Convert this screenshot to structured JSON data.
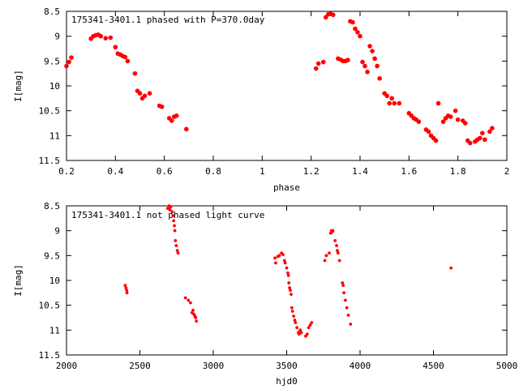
{
  "chart_data": [
    {
      "type": "scatter",
      "title": "175341-3401.1 phased with P=370.0day",
      "xlabel": "phase",
      "ylabel": "I[mag]",
      "xlim": [
        0.2,
        2.0
      ],
      "ylim": [
        11.5,
        8.5
      ],
      "y_inverted": true,
      "xticks": [
        "0.2",
        "0.4",
        "0.6",
        "0.8",
        "1",
        "1.2",
        "1.4",
        "1.6",
        "1.8",
        "2"
      ],
      "xtick_values": [
        0.2,
        0.4,
        0.6,
        0.8,
        1.0,
        1.2,
        1.4,
        1.6,
        1.8,
        2.0
      ],
      "yticks": [
        "8.5",
        "9",
        "9.5",
        "10",
        "10.5",
        "11",
        "11.5"
      ],
      "ytick_values": [
        8.5,
        9.0,
        9.5,
        10.0,
        10.5,
        11.0,
        11.5
      ],
      "grid": false,
      "color": "#ff0000",
      "x": [
        0.2,
        0.21,
        0.22,
        0.3,
        0.31,
        0.32,
        0.33,
        0.34,
        0.36,
        0.38,
        0.4,
        0.41,
        0.42,
        0.43,
        0.44,
        0.45,
        0.48,
        0.49,
        0.5,
        0.51,
        0.52,
        0.54,
        0.58,
        0.59,
        0.62,
        0.63,
        0.64,
        0.65,
        0.69,
        1.22,
        1.23,
        1.25,
        1.26,
        1.27,
        1.28,
        1.29,
        1.31,
        1.32,
        1.33,
        1.34,
        1.35,
        1.36,
        1.37,
        1.38,
        1.39,
        1.4,
        1.41,
        1.42,
        1.43,
        1.44,
        1.45,
        1.46,
        1.47,
        1.48,
        1.5,
        1.51,
        1.52,
        1.53,
        1.54,
        1.56,
        1.6,
        1.61,
        1.62,
        1.63,
        1.64,
        1.67,
        1.68,
        1.69,
        1.7,
        1.71,
        1.72,
        1.74,
        1.75,
        1.76,
        1.77,
        1.79,
        1.8,
        1.82,
        1.83,
        1.84,
        1.85,
        1.87,
        1.88,
        1.89,
        1.9,
        1.91,
        1.93,
        1.94
      ],
      "y": [
        9.6,
        9.52,
        9.43,
        9.05,
        9.0,
        8.98,
        8.97,
        9.0,
        9.04,
        9.03,
        9.22,
        9.35,
        9.37,
        9.4,
        9.42,
        9.5,
        9.75,
        10.1,
        10.15,
        10.25,
        10.2,
        10.15,
        10.4,
        10.42,
        10.65,
        10.7,
        10.62,
        10.6,
        10.87,
        9.65,
        9.55,
        9.52,
        8.62,
        8.56,
        8.55,
        8.57,
        9.45,
        9.47,
        9.5,
        9.5,
        9.48,
        8.7,
        8.72,
        8.85,
        8.92,
        9.0,
        9.52,
        9.6,
        9.72,
        9.2,
        9.3,
        9.45,
        9.6,
        9.85,
        10.15,
        10.2,
        10.35,
        10.25,
        10.35,
        10.35,
        10.55,
        10.6,
        10.65,
        10.68,
        10.72,
        10.88,
        10.92,
        11.0,
        11.05,
        11.1,
        10.35,
        10.72,
        10.65,
        10.6,
        10.62,
        10.5,
        10.68,
        10.7,
        10.75,
        11.1,
        11.15,
        11.12,
        11.08,
        11.05,
        10.95,
        11.08,
        10.92,
        10.85
      ]
    },
    {
      "type": "scatter",
      "title": "175341-3401.1 not phased light curve",
      "xlabel": "hjd0",
      "ylabel": "I[mag]",
      "xlim": [
        2000,
        5000
      ],
      "ylim": [
        11.5,
        8.5
      ],
      "y_inverted": true,
      "xticks": [
        "2000",
        "2500",
        "3000",
        "3500",
        "4000",
        "4500",
        "5000"
      ],
      "xtick_values": [
        2000,
        2500,
        3000,
        3500,
        4000,
        4500,
        5000
      ],
      "yticks": [
        "8.5",
        "9",
        "9.5",
        "10",
        "10.5",
        "11",
        "11.5"
      ],
      "ytick_values": [
        8.5,
        9.0,
        9.5,
        10.0,
        10.5,
        11.0,
        11.5
      ],
      "grid": false,
      "color": "#ff0000",
      "x": [
        2400,
        2405,
        2410,
        2412,
        2690,
        2700,
        2705,
        2710,
        2720,
        2725,
        2730,
        2735,
        2738,
        2742,
        2748,
        2755,
        2760,
        2810,
        2830,
        2845,
        2855,
        2862,
        2868,
        2875,
        2880,
        2885,
        3420,
        3425,
        3440,
        3450,
        3465,
        3475,
        3485,
        3490,
        3500,
        3508,
        3512,
        3515,
        3520,
        3525,
        3530,
        3535,
        3540,
        3548,
        3555,
        3560,
        3570,
        3580,
        3585,
        3592,
        3600,
        3630,
        3640,
        3650,
        3660,
        3670,
        3760,
        3770,
        3790,
        3800,
        3805,
        3810,
        3815,
        3830,
        3840,
        3845,
        3850,
        3860,
        3880,
        3885,
        3890,
        3900,
        3910,
        3920,
        3935,
        4620
      ],
      "y": [
        10.1,
        10.15,
        10.2,
        10.25,
        8.55,
        8.5,
        8.58,
        8.52,
        8.62,
        8.7,
        8.8,
        8.9,
        9.0,
        9.2,
        9.3,
        9.4,
        9.45,
        10.35,
        10.4,
        10.45,
        10.65,
        10.6,
        10.68,
        10.72,
        10.75,
        10.82,
        9.55,
        9.65,
        9.52,
        9.5,
        9.45,
        9.48,
        9.6,
        9.65,
        9.75,
        9.85,
        9.9,
        10.05,
        10.15,
        10.2,
        10.28,
        10.55,
        10.62,
        10.72,
        10.8,
        10.85,
        10.95,
        11.05,
        11.08,
        11.0,
        11.05,
        11.12,
        11.08,
        10.95,
        10.9,
        10.85,
        9.6,
        9.5,
        9.45,
        9.05,
        9.0,
        9.02,
        9.0,
        9.2,
        9.3,
        9.4,
        9.45,
        9.6,
        10.05,
        10.1,
        10.25,
        10.4,
        10.55,
        10.7,
        10.88,
        9.75
      ]
    }
  ]
}
